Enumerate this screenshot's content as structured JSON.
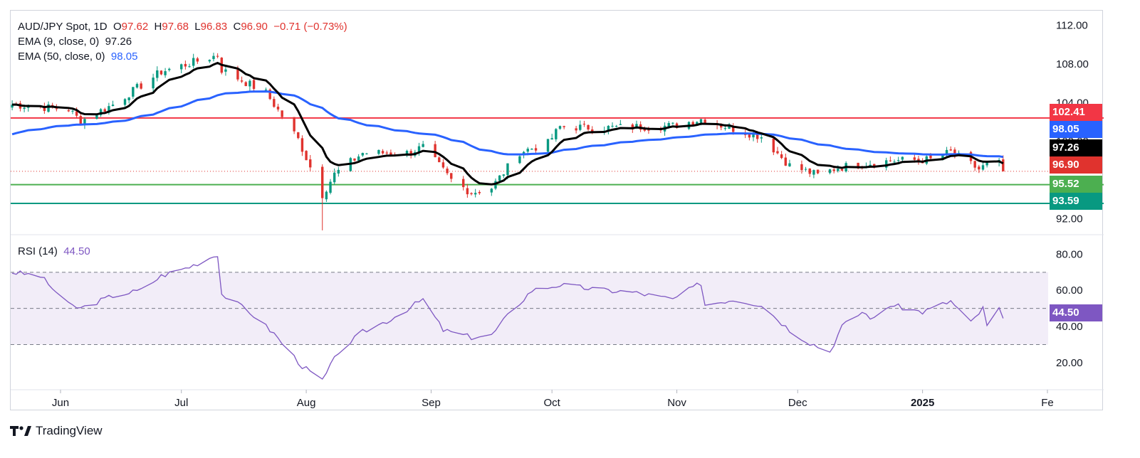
{
  "legend": {
    "symbol": "AUD/JPY Spot, 1D",
    "o_label": "O",
    "o": "97.62",
    "h_label": "H",
    "h": "97.68",
    "l_label": "L",
    "l": "96.83",
    "c_label": "C",
    "c": "96.90",
    "change": "−0.71 (−0.73%)",
    "ema9_label": "EMA (9, close, 0)",
    "ema9": "97.26",
    "ema50_label": "EMA (50, close, 0)",
    "ema50": "98.05",
    "rsi_label": "RSI (14)",
    "rsi": "44.50"
  },
  "price_labels": {
    "resistance": "102.41",
    "ema50": "98.05",
    "ema9": "97.26",
    "last": "96.90",
    "support1": "95.52",
    "support2": "93.59",
    "rsi": "44.50"
  },
  "brand": "TradingView",
  "colors": {
    "up": "#089981",
    "down": "#e0332e",
    "ema9": "#000000",
    "ema50": "#2962ff",
    "resistance": "#f23645",
    "support1": "#4caf50",
    "support2": "#089981",
    "rsi": "#7e57c2",
    "rsi_band": "#ede7f6"
  },
  "chart_data": [
    {
      "type": "candlestick",
      "title": "AUD/JPY Spot, 1D",
      "x_ticks": [
        "Jun",
        "Jul",
        "Aug",
        "Sep",
        "Oct",
        "Nov",
        "Dec",
        "2025",
        "Fe"
      ],
      "y_ticks": [
        "92.00",
        "96.00",
        "100.00",
        "104.00",
        "108.00",
        "112.00"
      ],
      "ylim": [
        90.5,
        113.5
      ],
      "horizontal_levels": [
        {
          "value": 102.41,
          "color": "red"
        },
        {
          "value": 95.52,
          "color": "green"
        },
        {
          "value": 93.59,
          "color": "teal"
        }
      ],
      "close_anchors": [
        [
          "2024-05-20",
          103.8
        ],
        [
          "2024-06-03",
          103.3
        ],
        [
          "2024-06-06",
          102.1
        ],
        [
          "2024-06-14",
          103.8
        ],
        [
          "2024-06-26",
          107.2
        ],
        [
          "2024-07-10",
          108.9
        ],
        [
          "2024-07-11",
          107.4
        ],
        [
          "2024-07-22",
          105.0
        ],
        [
          "2024-07-30",
          100.2
        ],
        [
          "2024-08-05",
          94.5
        ],
        [
          "2024-08-08",
          96.6
        ],
        [
          "2024-08-15",
          98.8
        ],
        [
          "2024-08-26",
          98.8
        ],
        [
          "2024-08-30",
          99.4
        ],
        [
          "2024-09-06",
          96.0
        ],
        [
          "2024-09-11",
          94.7
        ],
        [
          "2024-09-16",
          95.2
        ],
        [
          "2024-09-23",
          98.9
        ],
        [
          "2024-09-30",
          99.8
        ],
        [
          "2024-10-03",
          101.5
        ],
        [
          "2024-10-14",
          101.4
        ],
        [
          "2024-10-31",
          101.6
        ],
        [
          "2024-11-07",
          102.3
        ],
        [
          "2024-11-15",
          101.3
        ],
        [
          "2024-11-22",
          100.5
        ],
        [
          "2024-11-29",
          97.5
        ],
        [
          "2024-12-06",
          96.5
        ],
        [
          "2024-12-11",
          97.3
        ],
        [
          "2024-12-18",
          97.7
        ],
        [
          "2024-12-24",
          98.0
        ],
        [
          "2025-01-03",
          98.1
        ],
        [
          "2025-01-08",
          98.9
        ],
        [
          "2025-01-15",
          97.1
        ],
        [
          "2025-01-17",
          97.6
        ],
        [
          "2025-01-20",
          97.7
        ],
        [
          "2025-01-21",
          96.9
        ]
      ],
      "series": [
        {
          "name": "EMA (9, close, 0)",
          "last": 97.26
        },
        {
          "name": "EMA (50, close, 0)",
          "last": 98.05
        }
      ],
      "last_close": 96.9
    },
    {
      "type": "line",
      "title": "RSI (14)",
      "y_ticks": [
        "20.00",
        "40.00",
        "60.00",
        "80.00"
      ],
      "ylim": [
        5,
        90
      ],
      "band": [
        30,
        70
      ],
      "midline": 50,
      "anchors": [
        [
          "2024-05-20",
          70
        ],
        [
          "2024-05-27",
          68
        ],
        [
          "2024-06-03",
          52
        ],
        [
          "2024-06-06",
          50
        ],
        [
          "2024-06-14",
          57
        ],
        [
          "2024-06-21",
          60
        ],
        [
          "2024-06-26",
          68
        ],
        [
          "2024-07-03",
          73
        ],
        [
          "2024-07-10",
          80
        ],
        [
          "2024-07-11",
          58
        ],
        [
          "2024-07-18",
          48
        ],
        [
          "2024-07-24",
          36
        ],
        [
          "2024-07-31",
          18
        ],
        [
          "2024-08-05",
          10
        ],
        [
          "2024-08-09",
          26
        ],
        [
          "2024-08-15",
          37
        ],
        [
          "2024-08-22",
          44
        ],
        [
          "2024-08-30",
          55
        ],
        [
          "2024-09-04",
          38
        ],
        [
          "2024-09-11",
          34
        ],
        [
          "2024-09-16",
          35
        ],
        [
          "2024-09-20",
          46
        ],
        [
          "2024-09-26",
          60
        ],
        [
          "2024-10-03",
          63
        ],
        [
          "2024-10-14",
          60
        ],
        [
          "2024-10-21",
          59
        ],
        [
          "2024-10-31",
          55
        ],
        [
          "2024-11-07",
          64
        ],
        [
          "2024-11-08",
          52
        ],
        [
          "2024-11-15",
          55
        ],
        [
          "2024-11-22",
          52
        ],
        [
          "2024-11-29",
          38
        ],
        [
          "2024-12-04",
          31
        ],
        [
          "2024-12-09",
          26
        ],
        [
          "2024-12-12",
          40
        ],
        [
          "2024-12-17",
          48
        ],
        [
          "2024-12-20",
          44
        ],
        [
          "2024-12-24",
          52
        ],
        [
          "2025-01-01",
          48
        ],
        [
          "2025-01-08",
          54
        ],
        [
          "2025-01-13",
          42
        ],
        [
          "2025-01-16",
          50
        ],
        [
          "2025-01-17",
          40
        ],
        [
          "2025-01-20",
          50
        ],
        [
          "2025-01-21",
          44.5
        ]
      ],
      "last": 44.5
    }
  ]
}
